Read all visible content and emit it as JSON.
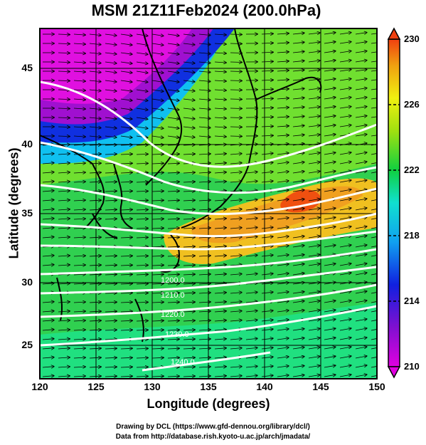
{
  "title": "MSM 21Z11Feb2024 (200.0hPa)",
  "x_axis": {
    "label": "Longitude (degrees)",
    "ticks": [
      "120",
      "125",
      "130",
      "135",
      "140",
      "145",
      "150"
    ]
  },
  "y_axis": {
    "label": "Latitude  (degrees)",
    "ticks": [
      "25",
      "30",
      "35",
      "40",
      "45"
    ]
  },
  "colorbar": {
    "ticks": [
      "210",
      "214",
      "218",
      "222",
      "226",
      "230"
    ],
    "range": [
      210,
      230
    ],
    "colors": [
      "#e000e0",
      "#7010d0",
      "#1020e0",
      "#10a0f0",
      "#10e0d0",
      "#10d040",
      "#a0e010",
      "#f0f010",
      "#f0a010",
      "#f04010"
    ]
  },
  "contours": {
    "color": "#ffffff",
    "labels": [
      "1200.0",
      "1210.0",
      "1220.0",
      "1230.0",
      "1240.0"
    ]
  },
  "credits": {
    "line1": "Drawing by DCL (https://www.gfd-dennou.org/library/dcl/)",
    "line2": "Data from http://database.rish.kyoto-u.ac.jp/arch/jmadata/"
  }
}
